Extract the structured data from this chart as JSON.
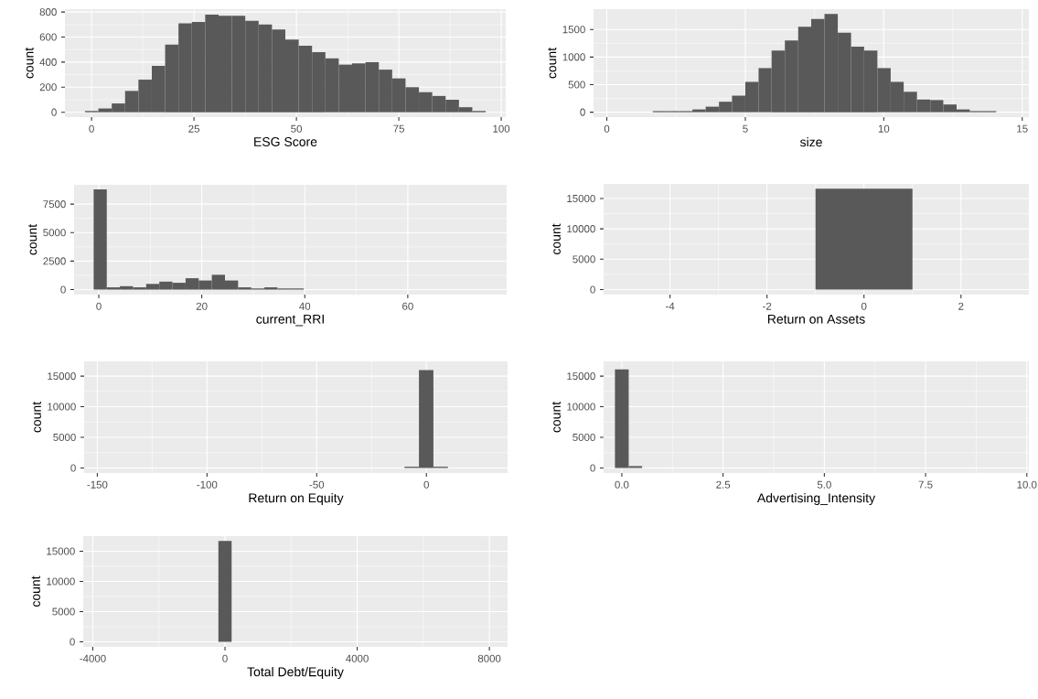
{
  "chart_data": [
    {
      "type": "histogram",
      "xlabel": "ESG Score",
      "ylabel": "count",
      "color": "#595959",
      "grid": true,
      "bins": [
        -1.6,
        1.66,
        4.92,
        8.18,
        11.44,
        14.7,
        17.96,
        21.22,
        24.48,
        27.74,
        31.0,
        34.26,
        37.52,
        40.78,
        44.04,
        47.3,
        50.56,
        53.82,
        57.08,
        60.34,
        63.6,
        66.86,
        70.12,
        73.38,
        76.64,
        79.9,
        83.16,
        86.42,
        89.68,
        92.94,
        96.2
      ],
      "values": [
        10,
        30,
        70,
        170,
        260,
        370,
        540,
        710,
        720,
        780,
        770,
        770,
        730,
        700,
        660,
        580,
        530,
        480,
        430,
        380,
        390,
        400,
        340,
        270,
        200,
        160,
        130,
        100,
        40,
        10
      ],
      "xlim": [
        -6.5,
        101.1
      ],
      "ylim": [
        -39,
        823
      ],
      "xticks": [
        0,
        25,
        50,
        75,
        100
      ],
      "yticks": [
        0,
        200,
        400,
        600,
        800
      ]
    },
    {
      "type": "histogram",
      "xlabel": "size",
      "ylabel": "count",
      "color": "#595959",
      "grid": true,
      "bins": [
        1.66,
        2.14,
        2.61,
        3.09,
        3.57,
        4.05,
        4.52,
        5.0,
        5.48,
        5.95,
        6.43,
        6.91,
        7.38,
        7.86,
        8.34,
        8.82,
        9.29,
        9.77,
        10.25,
        10.72,
        11.2,
        11.68,
        12.15,
        12.63,
        13.11,
        13.59,
        14.06
      ],
      "values": [
        20,
        20,
        20,
        50,
        100,
        190,
        300,
        550,
        800,
        1120,
        1300,
        1550,
        1690,
        1780,
        1440,
        1190,
        1120,
        800,
        550,
        370,
        230,
        220,
        140,
        50,
        20,
        20
      ],
      "xlim": [
        -0.48,
        15.24
      ],
      "ylim": [
        -89,
        1869
      ],
      "xticks": [
        0,
        5,
        10,
        15
      ],
      "yticks": [
        0,
        500,
        1000,
        1500
      ]
    },
    {
      "type": "histogram",
      "xlabel": "current_RRI",
      "ylabel": "count",
      "color": "#595959",
      "grid": true,
      "bins": [
        -1.0,
        1.55,
        4.1,
        6.65,
        9.2,
        11.75,
        14.3,
        16.85,
        19.4,
        21.95,
        24.5,
        27.05,
        29.6,
        32.15,
        34.7,
        37.25,
        39.8
      ],
      "values": [
        8800,
        200,
        300,
        200,
        500,
        700,
        600,
        1000,
        800,
        1300,
        800,
        200,
        100,
        200,
        100,
        100
      ],
      "xlim": [
        -4.8,
        79.2
      ],
      "ylim": [
        -438,
        9198
      ],
      "xticks": [
        0,
        20,
        40,
        60
      ],
      "yticks": [
        0,
        2500,
        5000,
        7500
      ]
    },
    {
      "type": "histogram",
      "xlabel": "Return on Assets",
      "ylabel": "count",
      "color": "#595959",
      "grid": true,
      "bins": [
        -1,
        1
      ],
      "values": [
        16600
      ],
      "xlim": [
        -5.37,
        3.4
      ],
      "ylim": [
        -829,
        17409
      ],
      "xticks": [
        -4,
        -2,
        0,
        2
      ],
      "yticks": [
        0,
        5000,
        10000,
        15000
      ]
    },
    {
      "type": "histogram",
      "xlabel": "Return on Equity",
      "ylabel": "count",
      "color": "#595959",
      "grid": true,
      "bins": [
        -10,
        -3.4,
        3.2,
        9.8
      ],
      "values": [
        200,
        16000,
        200
      ],
      "xlim": [
        -156,
        37
      ],
      "ylim": [
        -829,
        17409
      ],
      "xticks": [
        -150,
        -100,
        -50,
        0
      ],
      "yticks": [
        0,
        5000,
        10000,
        15000
      ]
    },
    {
      "type": "histogram",
      "xlabel": "Advertising_Intensity",
      "ylabel": "count",
      "color": "#595959",
      "grid": true,
      "bins": [
        -0.17,
        0.17,
        0.5
      ],
      "values": [
        16100,
        300
      ],
      "xlim": [
        -0.45,
        10.05
      ],
      "ylim": [
        -829,
        17409
      ],
      "xticks": [
        {
          "value": 0,
          "label": "0.0"
        },
        {
          "value": 2.5,
          "label": "2.5"
        },
        {
          "value": 5,
          "label": "5.0"
        },
        {
          "value": 7.5,
          "label": "7.5"
        },
        {
          "value": 10,
          "label": "10.0"
        }
      ],
      "yticks": [
        0,
        5000,
        10000,
        15000
      ]
    },
    {
      "type": "histogram",
      "xlabel": "Total Debt/Equity",
      "ylabel": "count",
      "color": "#595959",
      "grid": true,
      "bins": [
        -200,
        200
      ],
      "values": [
        16700
      ],
      "xlim": [
        -4290,
        8550
      ],
      "ylim": [
        -833,
        17500
      ],
      "xticks": [
        -4000,
        0,
        4000,
        8000
      ],
      "yticks": [
        0,
        5000,
        10000,
        15000
      ]
    }
  ]
}
